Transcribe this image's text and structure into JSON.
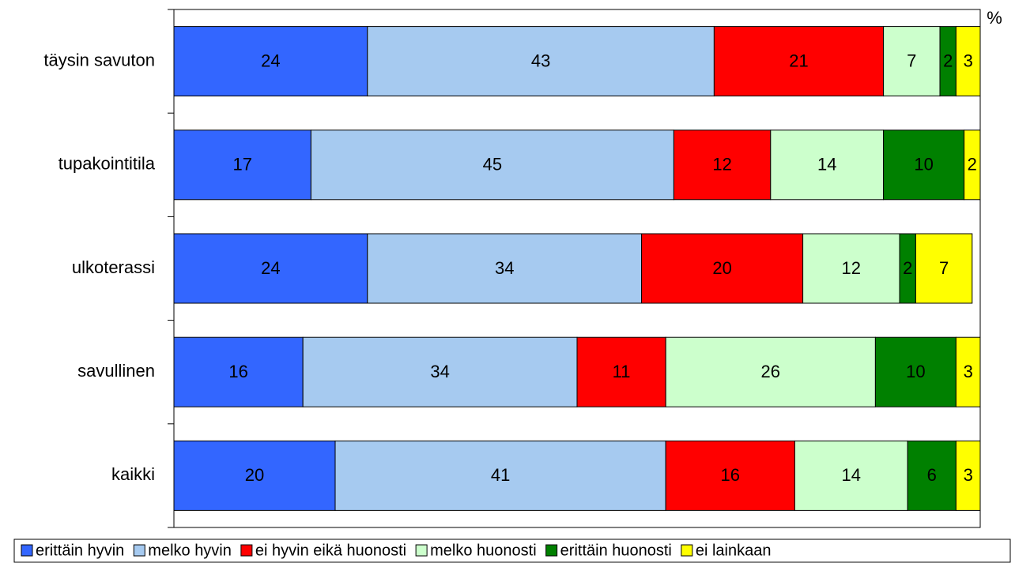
{
  "chart_data": {
    "type": "stacked-barh",
    "categories": [
      "täysin savuton",
      "tupakointitila",
      "ulkoterassi",
      "savullinen",
      "kaikki"
    ],
    "series": [
      {
        "name": "erittäin hyvin",
        "color": "#3366ff",
        "values": [
          24,
          17,
          24,
          16,
          20
        ]
      },
      {
        "name": "melko hyvin",
        "color": "#a6caf0",
        "values": [
          43,
          45,
          34,
          34,
          41
        ]
      },
      {
        "name": "ei hyvin eikä huonosti",
        "color": "#ff0000",
        "values": [
          21,
          12,
          20,
          11,
          16
        ]
      },
      {
        "name": "melko huonosti",
        "color": "#ccffcc",
        "values": [
          7,
          14,
          12,
          26,
          14
        ]
      },
      {
        "name": "erittäin huonosti",
        "color": "#008000",
        "values": [
          2,
          10,
          2,
          10,
          6
        ]
      },
      {
        "name": "ei lainkaan",
        "color": "#ffff00",
        "values": [
          3,
          2,
          7,
          3,
          3
        ]
      }
    ],
    "xlabel": "%",
    "xlim": [
      0,
      100
    ],
    "legend": "bottom"
  }
}
